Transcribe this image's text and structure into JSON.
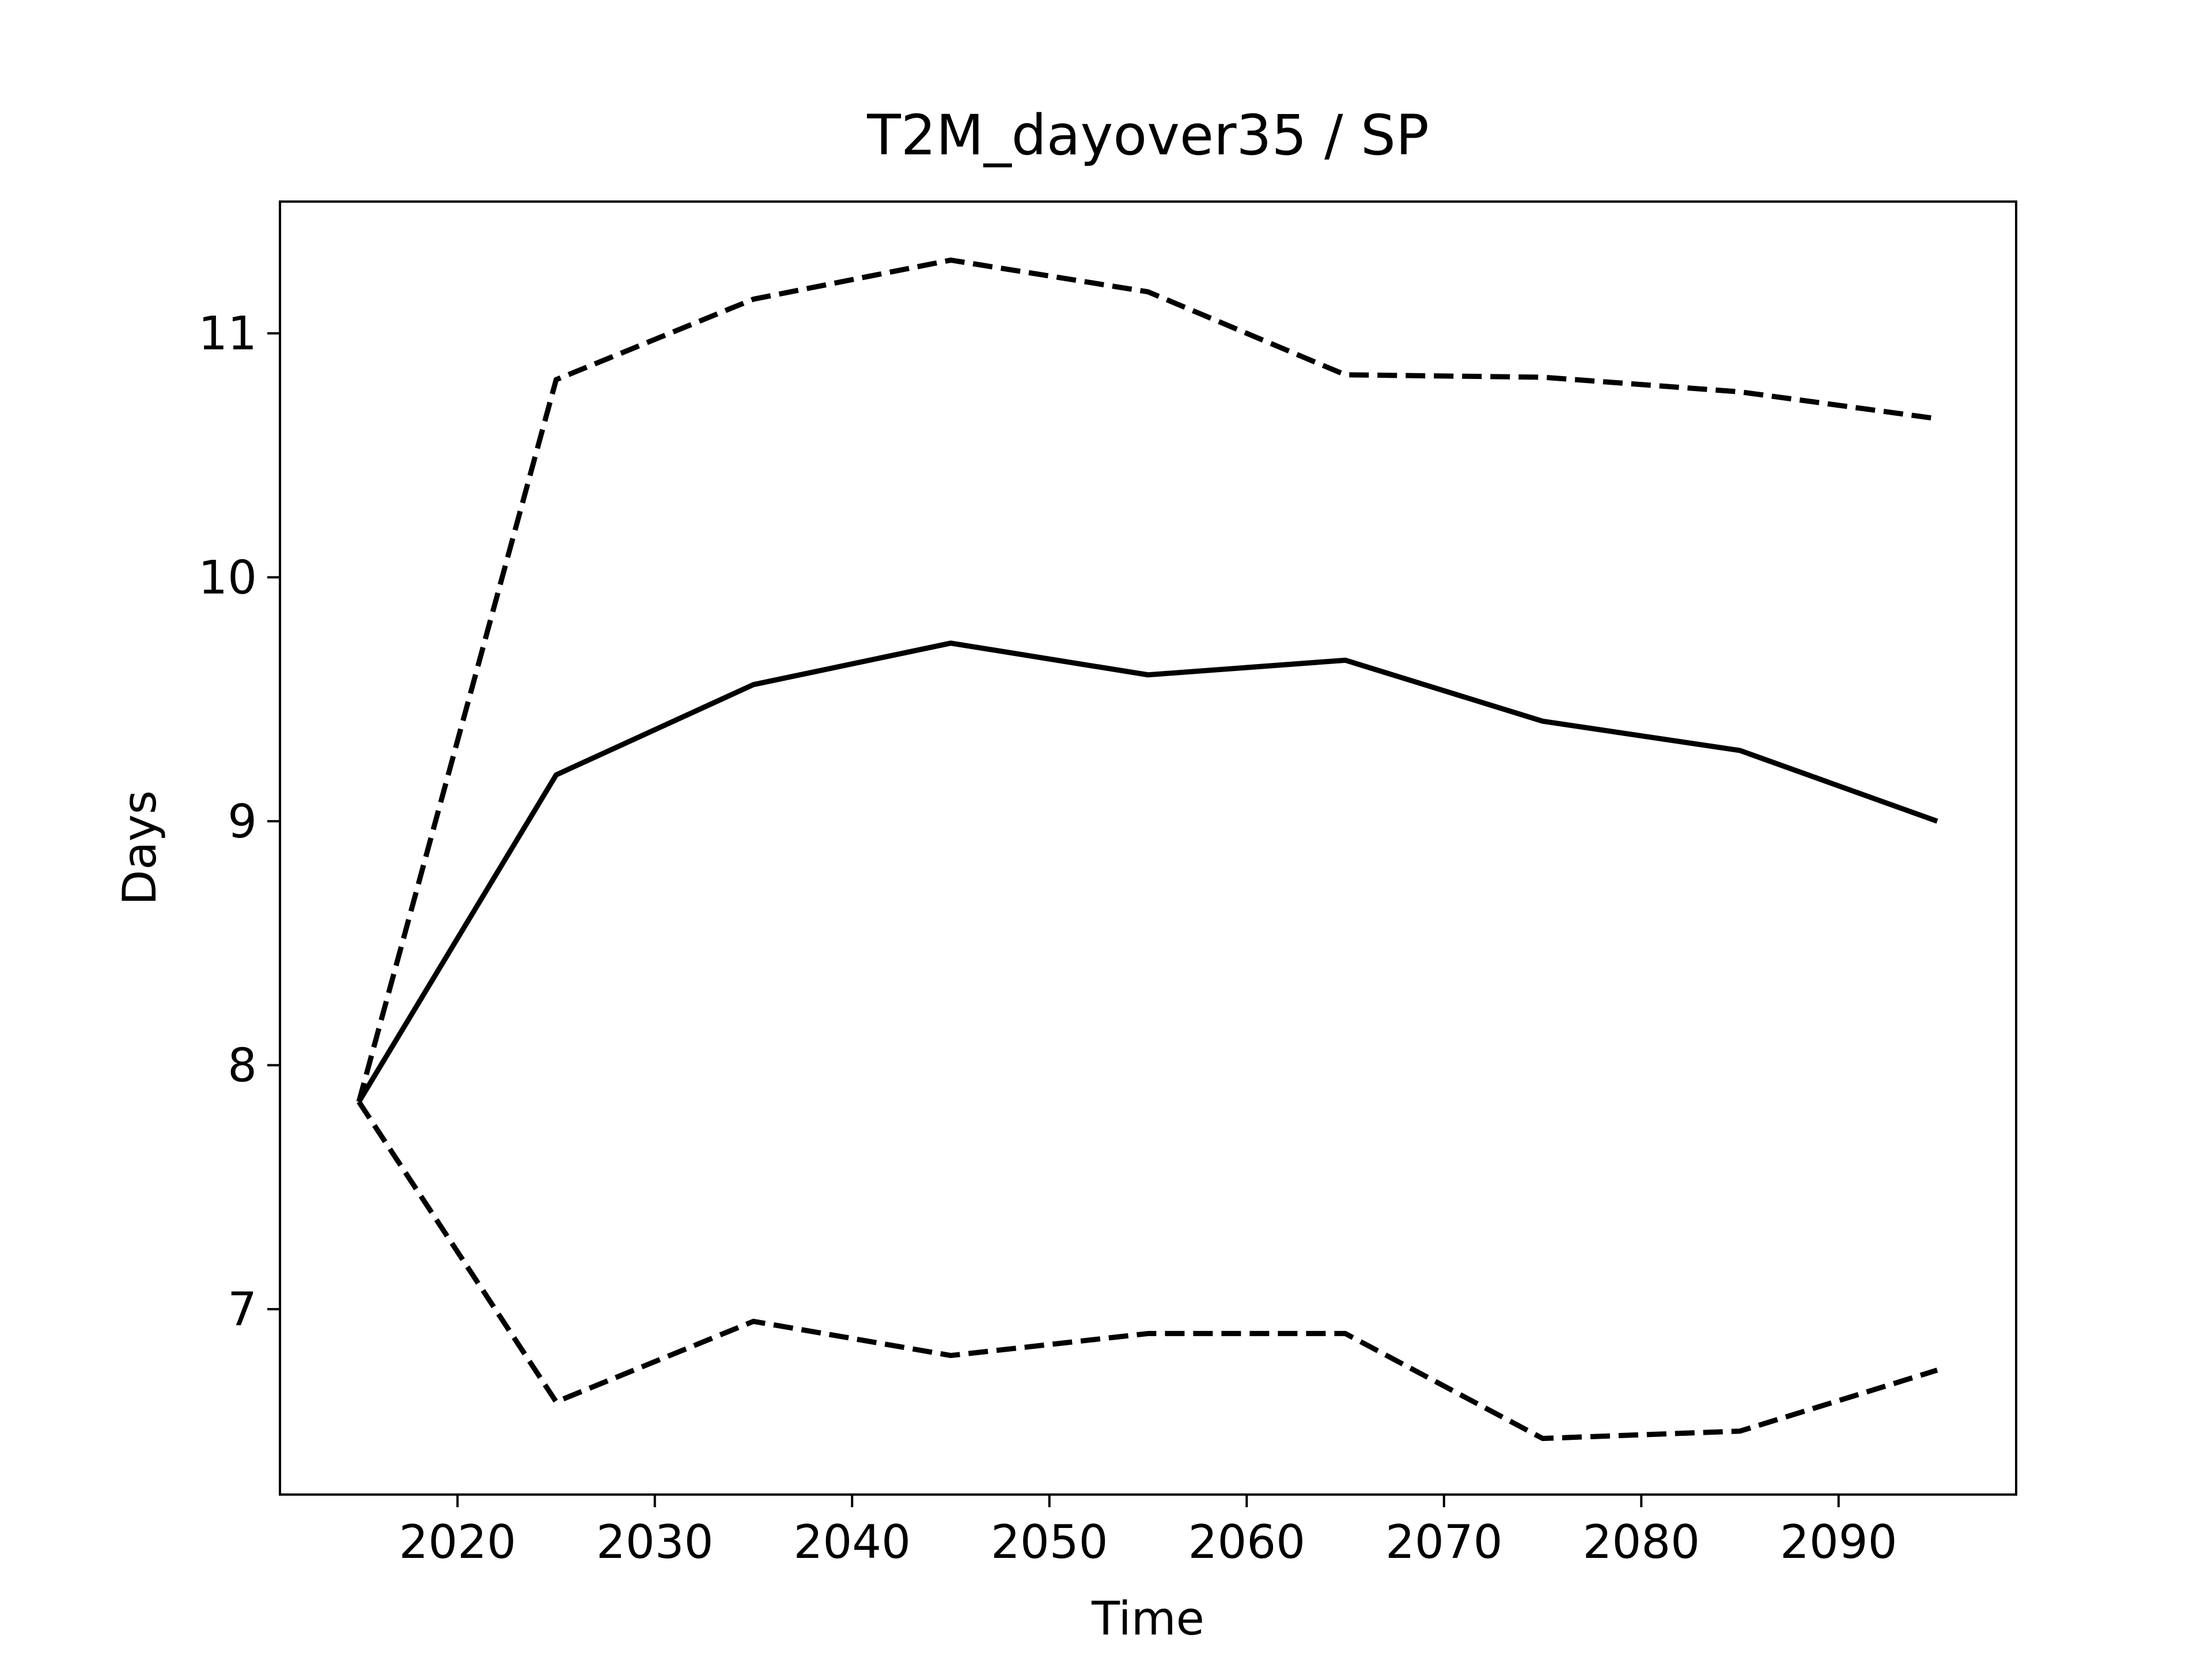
{
  "chart_data": {
    "type": "line",
    "title": "T2M_dayover35 / SP",
    "x_label": "Time",
    "y_label": "Days",
    "x": [
      2015,
      2025,
      2035,
      2045,
      2055,
      2065,
      2075,
      2085,
      2095
    ],
    "series": [
      {
        "color": "#000000",
        "linestyle": "solid",
        "values": [
          7.85,
          9.19,
          9.56,
          9.73,
          9.6,
          9.66,
          9.41,
          9.29,
          9.0
        ]
      },
      {
        "color": "#000000",
        "linestyle": "dashed",
        "values": [
          7.85,
          10.81,
          11.14,
          11.3,
          11.17,
          10.83,
          10.82,
          10.76,
          10.65
        ]
      },
      {
        "color": "#000000",
        "linestyle": "dashed",
        "values": [
          7.85,
          6.62,
          6.95,
          6.81,
          6.9,
          6.9,
          6.47,
          6.5,
          6.75
        ]
      }
    ],
    "xlim": [
      2011,
      2099
    ],
    "xticks": [
      2020,
      2030,
      2040,
      2050,
      2060,
      2070,
      2080,
      2090
    ],
    "ylim": [
      6.24,
      11.54
    ],
    "yticks": [
      7,
      8,
      9,
      10,
      11
    ],
    "grid": false
  }
}
